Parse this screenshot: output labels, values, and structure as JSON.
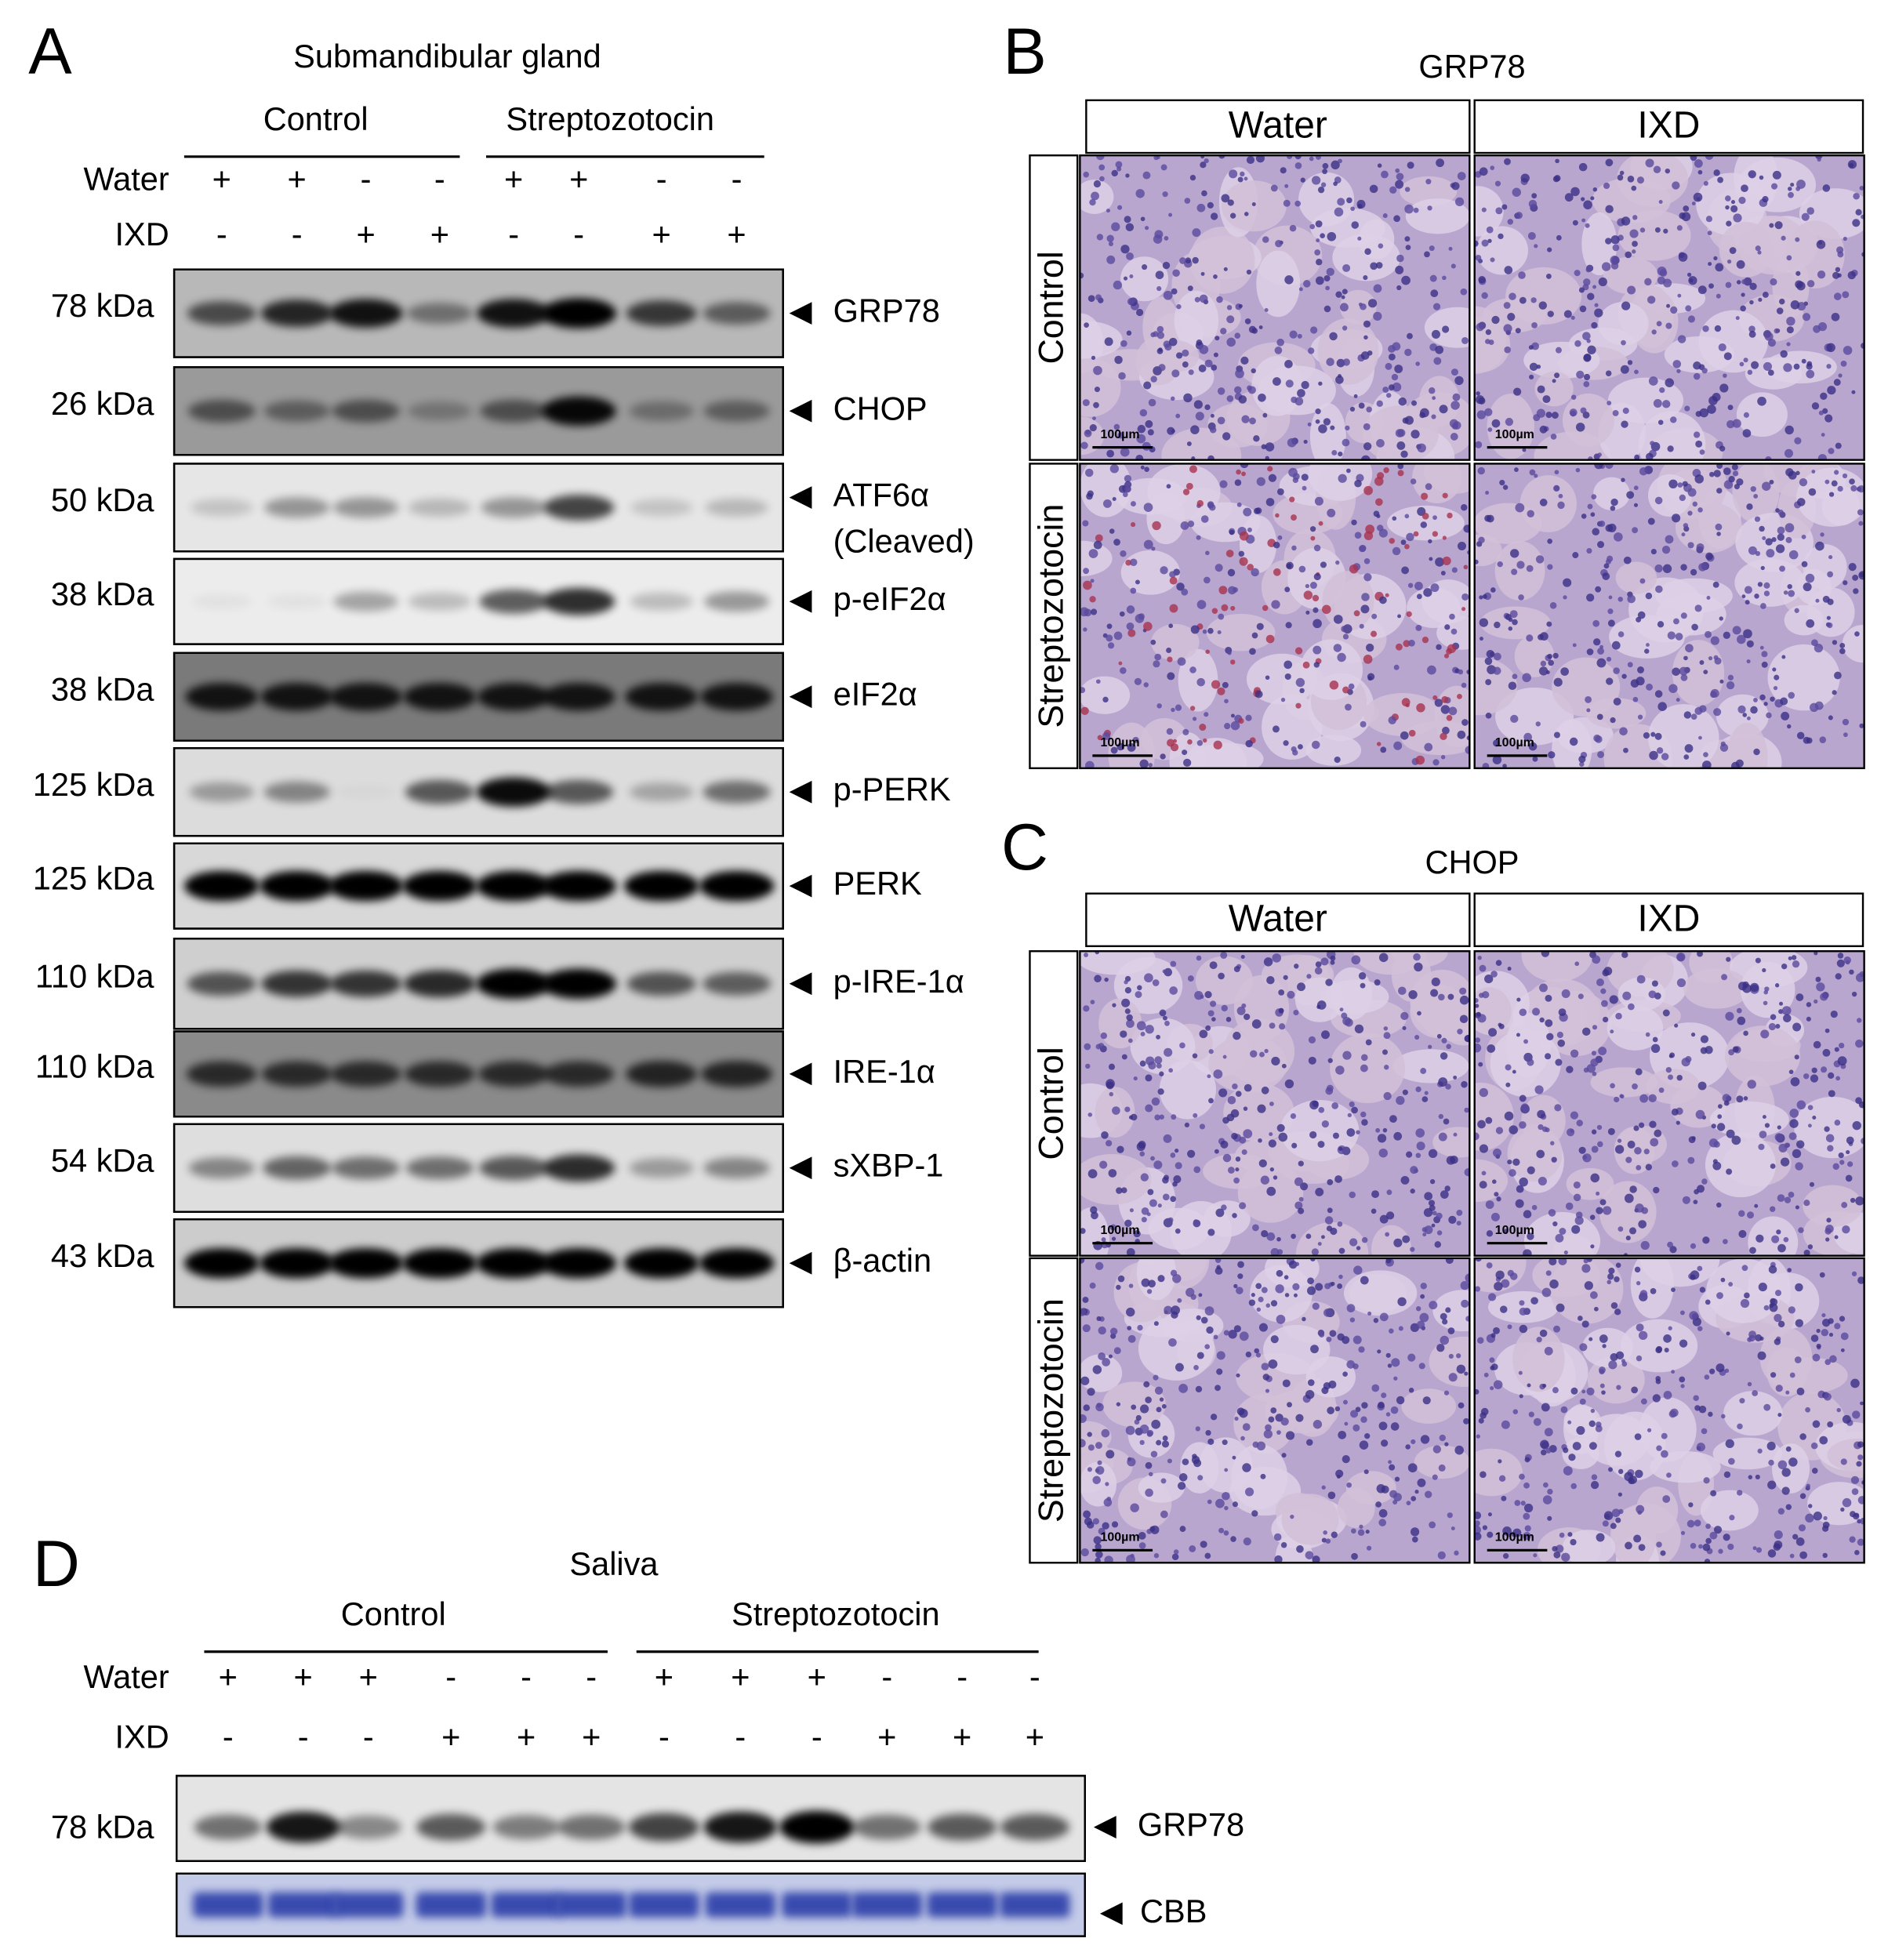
{
  "panels": {
    "A": {
      "letter": "A",
      "title": "Submandibular gland",
      "groups": [
        "Control",
        "Streptozotocin"
      ],
      "rows": [
        {
          "label": "Water",
          "signs": [
            "+",
            "+",
            "-",
            "-",
            "+",
            "+",
            "-",
            "-"
          ]
        },
        {
          "label": "IXD",
          "signs": [
            "-",
            "-",
            "+",
            "+",
            "-",
            "-",
            "+",
            "+"
          ]
        }
      ],
      "blots": [
        {
          "size": "78 kDa",
          "label": "GRP78"
        },
        {
          "size": "26 kDa",
          "label": "CHOP"
        },
        {
          "size": "50 kDa",
          "label": "ATF6α",
          "sublabel": "(Cleaved)"
        },
        {
          "size": "38 kDa",
          "label": "p-eIF2α"
        },
        {
          "size": "38 kDa",
          "label": "eIF2α"
        },
        {
          "size": "125 kDa",
          "label": "p-PERK"
        },
        {
          "size": "125 kDa",
          "label": "PERK"
        },
        {
          "size": "110 kDa",
          "label": "p-IRE-1α"
        },
        {
          "size": "110 kDa",
          "label": "IRE-1α"
        },
        {
          "size": "54 kDa",
          "label": "sXBP-1"
        },
        {
          "size": "43 kDa",
          "label": "β-actin"
        }
      ]
    },
    "B": {
      "letter": "B",
      "title": "GRP78",
      "columns": [
        "Water",
        "IXD"
      ],
      "rows": [
        "Control",
        "Streptozotocin"
      ],
      "scale_bar": "100µm"
    },
    "C": {
      "letter": "C",
      "title": "CHOP",
      "columns": [
        "Water",
        "IXD"
      ],
      "rows": [
        "Control",
        "Streptozotocin"
      ],
      "scale_bar": "100µm"
    },
    "D": {
      "letter": "D",
      "title": "Saliva",
      "groups": [
        "Control",
        "Streptozotocin"
      ],
      "rows": [
        {
          "label": "Water",
          "signs": [
            "+",
            "+",
            "+",
            "-",
            "-",
            "-",
            "+",
            "+",
            "+",
            "-",
            "-",
            "-"
          ]
        },
        {
          "label": "IXD",
          "signs": [
            "-",
            "-",
            "-",
            "+",
            "+",
            "+",
            "-",
            "-",
            "-",
            "+",
            "+",
            "+"
          ]
        }
      ],
      "blots": [
        {
          "size": "78 kDa",
          "label": "GRP78"
        },
        {
          "label": "CBB"
        }
      ]
    }
  }
}
